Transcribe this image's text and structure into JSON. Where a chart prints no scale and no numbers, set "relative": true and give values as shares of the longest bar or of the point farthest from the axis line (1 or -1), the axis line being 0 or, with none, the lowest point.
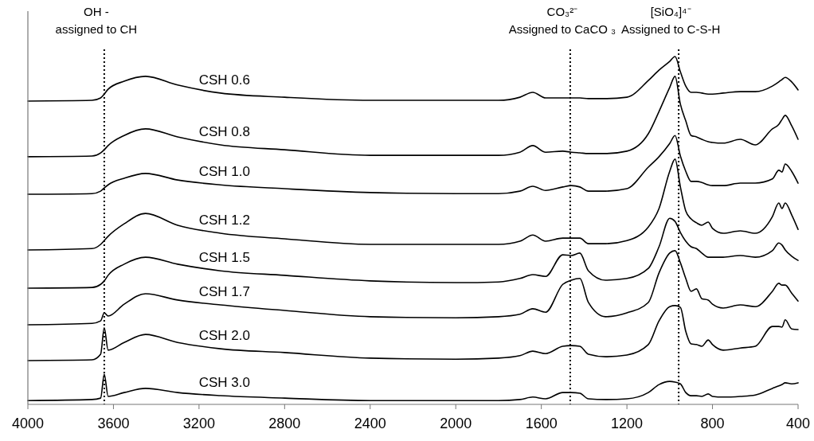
{
  "chart_data": {
    "type": "line",
    "relative": true,
    "x": [
      4000,
      3700,
      3660,
      3643,
      3625,
      3550,
      3450,
      3300,
      3100,
      2800,
      2400,
      2000,
      1800,
      1700,
      1640,
      1580,
      1500,
      1460,
      1420,
      1380,
      1300,
      1200,
      1100,
      1050,
      1000,
      975,
      950,
      925,
      900,
      875,
      850,
      820,
      800,
      750,
      670,
      600,
      520,
      490,
      475,
      460,
      430,
      400
    ],
    "xlim": [
      4000,
      400
    ],
    "xticks": [
      4000,
      3600,
      3200,
      2800,
      2400,
      2000,
      1600,
      1200,
      800,
      400
    ],
    "grid": false,
    "line_style": "solid",
    "series": [
      {
        "name": "CSH 0.6",
        "color": "#000000",
        "values": [
          0.872,
          0.874,
          0.881,
          0.892,
          0.906,
          0.929,
          0.943,
          0.918,
          0.895,
          0.883,
          0.874,
          0.874,
          0.874,
          0.883,
          0.897,
          0.881,
          0.881,
          0.881,
          0.881,
          0.879,
          0.879,
          0.883,
          0.931,
          0.961,
          0.986,
          1.0,
          0.956,
          0.915,
          0.897,
          0.897,
          0.895,
          0.892,
          0.892,
          0.895,
          0.899,
          0.899,
          0.915,
          0.927,
          0.934,
          0.94,
          0.927,
          0.904
        ]
      },
      {
        "name": "CSH 0.8",
        "color": "#000000",
        "values": [
          0.712,
          0.714,
          0.723,
          0.732,
          0.744,
          0.773,
          0.792,
          0.769,
          0.746,
          0.732,
          0.716,
          0.716,
          0.716,
          0.725,
          0.744,
          0.725,
          0.728,
          0.725,
          0.723,
          0.721,
          0.721,
          0.728,
          0.778,
          0.842,
          0.911,
          0.943,
          0.863,
          0.815,
          0.773,
          0.769,
          0.762,
          0.755,
          0.753,
          0.751,
          0.762,
          0.746,
          0.792,
          0.805,
          0.819,
          0.831,
          0.801,
          0.762
        ]
      },
      {
        "name": "CSH 1.0",
        "color": "#000000",
        "values": [
          0.604,
          0.606,
          0.613,
          0.622,
          0.631,
          0.65,
          0.664,
          0.645,
          0.631,
          0.62,
          0.609,
          0.606,
          0.606,
          0.613,
          0.627,
          0.615,
          0.625,
          0.629,
          0.625,
          0.613,
          0.613,
          0.62,
          0.682,
          0.712,
          0.75,
          0.773,
          0.714,
          0.67,
          0.641,
          0.641,
          0.638,
          0.631,
          0.629,
          0.629,
          0.636,
          0.636,
          0.648,
          0.673,
          0.668,
          0.691,
          0.67,
          0.636
        ]
      },
      {
        "name": "CSH 1.2",
        "color": "#000000",
        "values": [
          0.444,
          0.448,
          0.46,
          0.471,
          0.483,
          0.519,
          0.549,
          0.515,
          0.492,
          0.476,
          0.46,
          0.46,
          0.46,
          0.469,
          0.487,
          0.469,
          0.478,
          0.478,
          0.478,
          0.462,
          0.462,
          0.471,
          0.51,
          0.563,
          0.67,
          0.705,
          0.625,
          0.556,
          0.533,
          0.522,
          0.515,
          0.524,
          0.506,
          0.492,
          0.499,
          0.492,
          0.54,
          0.579,
          0.563,
          0.579,
          0.545,
          0.503
        ]
      },
      {
        "name": "CSH 1.5",
        "color": "#000000",
        "values": [
          0.334,
          0.336,
          0.345,
          0.355,
          0.371,
          0.403,
          0.423,
          0.403,
          0.384,
          0.371,
          0.355,
          0.35,
          0.352,
          0.362,
          0.373,
          0.368,
          0.43,
          0.428,
          0.435,
          0.384,
          0.357,
          0.362,
          0.391,
          0.453,
          0.535,
          0.526,
          0.494,
          0.469,
          0.453,
          0.448,
          0.435,
          0.423,
          0.423,
          0.423,
          0.428,
          0.423,
          0.442,
          0.464,
          0.458,
          0.444,
          0.426,
          0.414
        ]
      },
      {
        "name": "CSH 1.7",
        "color": "#000000",
        "values": [
          0.229,
          0.233,
          0.24,
          0.263,
          0.254,
          0.288,
          0.318,
          0.3,
          0.286,
          0.27,
          0.252,
          0.249,
          0.252,
          0.259,
          0.275,
          0.265,
          0.345,
          0.357,
          0.362,
          0.293,
          0.252,
          0.263,
          0.293,
          0.378,
          0.435,
          0.442,
          0.407,
          0.362,
          0.325,
          0.332,
          0.304,
          0.3,
          0.288,
          0.277,
          0.286,
          0.281,
          0.325,
          0.348,
          0.343,
          0.343,
          0.32,
          0.297
        ]
      },
      {
        "name": "CSH 2.0",
        "color": "#000000",
        "values": [
          0.126,
          0.128,
          0.144,
          0.22,
          0.156,
          0.178,
          0.201,
          0.178,
          0.16,
          0.149,
          0.133,
          0.13,
          0.133,
          0.14,
          0.153,
          0.146,
          0.167,
          0.169,
          0.167,
          0.144,
          0.137,
          0.142,
          0.172,
          0.24,
          0.281,
          0.284,
          0.279,
          0.21,
          0.174,
          0.172,
          0.167,
          0.185,
          0.172,
          0.156,
          0.162,
          0.167,
          0.224,
          0.224,
          0.222,
          0.243,
          0.217,
          0.215
        ]
      },
      {
        "name": "CSH 3.0",
        "color": "#000000",
        "values": [
          0.011,
          0.014,
          0.018,
          0.087,
          0.023,
          0.034,
          0.046,
          0.034,
          0.025,
          0.018,
          0.011,
          0.011,
          0.011,
          0.014,
          0.021,
          0.016,
          0.034,
          0.034,
          0.032,
          0.016,
          0.014,
          0.016,
          0.034,
          0.057,
          0.066,
          0.064,
          0.059,
          0.034,
          0.025,
          0.025,
          0.023,
          0.03,
          0.023,
          0.021,
          0.023,
          0.027,
          0.046,
          0.053,
          0.057,
          0.062,
          0.059,
          0.062
        ]
      }
    ],
    "ref_lines": [
      {
        "axis": "x",
        "value": 3643,
        "label": "OH -\nassigned to CH",
        "line_style": "dotted"
      },
      {
        "axis": "x",
        "value": 1465,
        "label": "CO₃²⁻\nAssigned to CaCO ₃",
        "line_style": "dotted"
      },
      {
        "axis": "x",
        "value": 958,
        "label": "[SiO₄]⁴⁻\nAssigned to C-S-H",
        "line_style": "dotted"
      }
    ]
  }
}
